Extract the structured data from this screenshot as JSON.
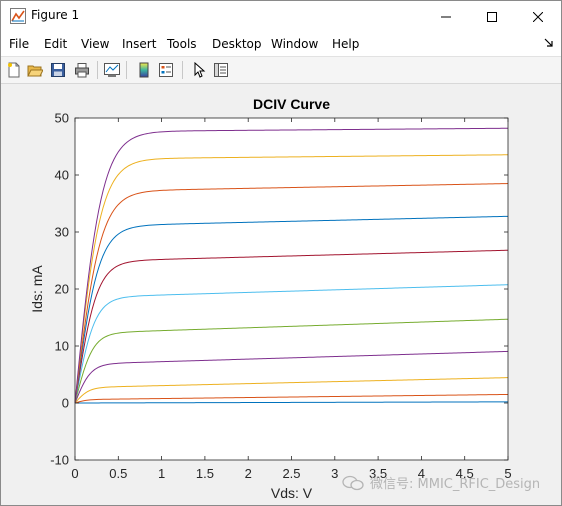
{
  "window": {
    "title": "Figure 1"
  },
  "menu": [
    {
      "label": "File"
    },
    {
      "label": "Edit"
    },
    {
      "label": "View"
    },
    {
      "label": "Insert"
    },
    {
      "label": "Tools"
    },
    {
      "label": "Desktop"
    },
    {
      "label": "Window"
    },
    {
      "label": "Help"
    }
  ],
  "toolbar": {
    "icons": [
      "new-figure-icon",
      "open-file-icon",
      "save-icon",
      "print-icon",
      "link-plot-icon",
      "insert-colorbar-icon",
      "insert-legend-icon",
      "edit-plot-icon",
      "property-inspector-icon"
    ]
  },
  "watermark": "微信号: MMIC_RFIC_Design",
  "chart_data": {
    "type": "line",
    "title": "DCIV Curve",
    "xlabel": "Vds: V",
    "ylabel": "Ids: mA",
    "xlim": [
      0,
      5
    ],
    "ylim": [
      -10,
      50
    ],
    "xticks": [
      "0",
      "0.5",
      "1",
      "1.5",
      "2",
      "2.5",
      "3",
      "3.5",
      "4",
      "4.5",
      "5"
    ],
    "yticks": [
      "-10",
      "0",
      "10",
      "20",
      "30",
      "40",
      "50"
    ],
    "grid": false,
    "series": [
      {
        "color": "#0072bd",
        "sat": 0.0,
        "slope": 0.04,
        "knee": 0.3
      },
      {
        "color": "#d95319",
        "sat": 0.6,
        "slope": 0.18,
        "knee": 0.3
      },
      {
        "color": "#edb120",
        "sat": 2.7,
        "slope": 0.35,
        "knee": 0.35
      },
      {
        "color": "#7e2f8e",
        "sat": 6.8,
        "slope": 0.45,
        "knee": 0.4
      },
      {
        "color": "#77ac30",
        "sat": 12.2,
        "slope": 0.5,
        "knee": 0.45
      },
      {
        "color": "#4dbeee",
        "sat": 18.5,
        "slope": 0.45,
        "knee": 0.5
      },
      {
        "color": "#a2142f",
        "sat": 24.8,
        "slope": 0.4,
        "knee": 0.55
      },
      {
        "color": "#0072bd",
        "sat": 31.0,
        "slope": 0.35,
        "knee": 0.6
      },
      {
        "color": "#d95319",
        "sat": 37.1,
        "slope": 0.28,
        "knee": 0.65
      },
      {
        "color": "#edb120",
        "sat": 42.8,
        "slope": 0.15,
        "knee": 0.65
      },
      {
        "color": "#7e2f8e",
        "sat": 47.6,
        "slope": 0.12,
        "knee": 0.68
      }
    ]
  }
}
